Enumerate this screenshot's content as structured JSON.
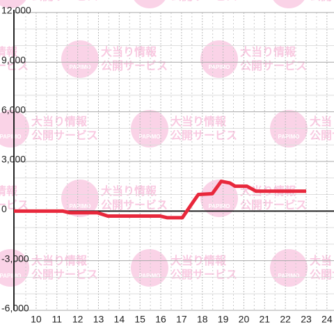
{
  "chart_data": {
    "type": "line",
    "watermark": {
      "lines": [
        "大当り情報",
        "公開サービス"
      ],
      "logo": "PAPIMO"
    },
    "x": [
      8.93,
      11.28,
      11.6,
      12.95,
      13.45,
      15.96,
      16.3,
      17.04,
      17.64,
      17.81,
      18.48,
      18.91,
      19.32,
      19.58,
      20.15,
      20.59,
      23.0
    ],
    "series": [
      {
        "color": "#e8283c",
        "values": [
          0,
          0,
          -100,
          -100,
          -300,
          -300,
          -400,
          -400,
          700,
          1000,
          1050,
          1800,
          1700,
          1500,
          1500,
          1200,
          1200
        ]
      }
    ],
    "xlim": [
      8.93,
      24.34
    ],
    "xticks": [
      10,
      11,
      12,
      13,
      14,
      15,
      16,
      17,
      18,
      19,
      20,
      21,
      22,
      23,
      24
    ],
    "ylim": [
      -6000,
      12000
    ],
    "yticks": [
      {
        "value": -6000,
        "label": "-6,000"
      },
      {
        "value": -3000,
        "label": "-3,000"
      },
      0,
      {
        "value": 3000,
        "label": "3,000"
      },
      {
        "value": 6000,
        "label": "6,000"
      },
      {
        "value": 9000,
        "label": "9,000"
      },
      {
        "value": 12000,
        "label": "12,000"
      }
    ],
    "grid": true
  }
}
